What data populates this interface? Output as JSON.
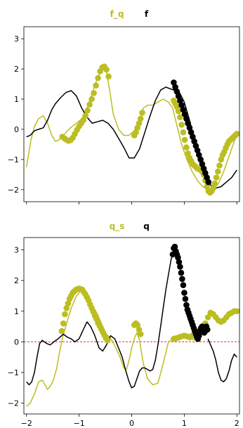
{
  "colors": {
    "olive": "#bcbd22",
    "black": "#000000",
    "zero_line": "#e8362a",
    "axes": "#000000",
    "background": "#ffffff"
  },
  "chart_data": [
    {
      "type": "line",
      "title_parts": [
        {
          "text": "f_q",
          "color": "#bcbd22"
        },
        {
          "text": "f",
          "color": "#000000"
        }
      ],
      "xlim": [
        -2.05,
        2.05
      ],
      "ylim": [
        -2.4,
        3.4
      ],
      "xticks": [
        -2,
        -1,
        0,
        1,
        2
      ],
      "xticklabels": [],
      "yticks": [
        -2,
        -1,
        0,
        1,
        2,
        3
      ],
      "yticklabels": [
        "−2",
        "−1",
        "0",
        "1",
        "2",
        "3"
      ],
      "grid": false,
      "zero_line": false,
      "series": [
        {
          "style": "line",
          "color": "#bcbd22",
          "x": [
            -2.0,
            -1.92,
            -1.85,
            -1.77,
            -1.68,
            -1.6,
            -1.52,
            -1.45,
            -1.38,
            -1.3,
            -1.22,
            -1.13,
            -1.05,
            -0.95,
            -0.85,
            -0.75,
            -0.65,
            -0.55,
            -0.48,
            -0.42,
            -0.35,
            -0.25,
            -0.15,
            -0.05,
            0.05,
            0.15,
            0.22,
            0.3,
            0.4,
            0.5,
            0.6,
            0.7,
            0.78,
            0.85,
            0.95,
            1.05,
            1.15,
            1.25,
            1.35,
            1.45,
            1.55,
            1.65,
            1.75,
            1.85,
            1.95,
            2.0
          ],
          "y": [
            -1.25,
            -0.4,
            0.1,
            0.35,
            0.45,
            0.2,
            -0.2,
            -0.4,
            -0.35,
            -0.2,
            -0.05,
            0.1,
            0.2,
            0.35,
            0.7,
            1.2,
            1.7,
            2.05,
            1.9,
            1.3,
            0.5,
            0.0,
            -0.2,
            -0.2,
            -0.05,
            0.3,
            0.7,
            0.8,
            0.8,
            0.9,
            1.0,
            0.9,
            0.7,
            0.2,
            -0.5,
            -1.0,
            -1.4,
            -1.7,
            -1.9,
            -2.0,
            -2.0,
            -1.8,
            -1.4,
            -0.9,
            -0.4,
            -0.2
          ]
        },
        {
          "style": "line",
          "color": "#000000",
          "x": [
            -2.0,
            -1.93,
            -1.85,
            -1.77,
            -1.68,
            -1.6,
            -1.52,
            -1.45,
            -1.35,
            -1.25,
            -1.15,
            -1.05,
            -0.95,
            -0.85,
            -0.75,
            -0.65,
            -0.55,
            -0.45,
            -0.35,
            -0.25,
            -0.15,
            -0.05,
            0.05,
            0.15,
            0.25,
            0.35,
            0.45,
            0.55,
            0.65,
            0.72,
            0.8,
            0.9,
            1.0,
            1.1,
            1.2,
            1.3,
            1.4,
            1.5,
            1.6,
            1.7,
            1.8,
            1.9,
            2.0
          ],
          "y": [
            -0.25,
            -0.2,
            -0.05,
            0.0,
            0.05,
            0.3,
            0.65,
            0.85,
            1.05,
            1.22,
            1.28,
            1.1,
            0.7,
            0.4,
            0.2,
            0.25,
            0.3,
            0.2,
            0.0,
            -0.3,
            -0.6,
            -0.95,
            -0.95,
            -0.65,
            -0.1,
            0.45,
            0.95,
            1.3,
            1.4,
            1.35,
            1.3,
            1.25,
            0.9,
            0.3,
            -0.4,
            -1.0,
            -1.55,
            -1.85,
            -1.95,
            -1.9,
            -1.75,
            -1.6,
            -1.35
          ]
        },
        {
          "style": "scatter",
          "color": "#bcbd22",
          "x": [
            -1.32,
            -1.28,
            -1.24,
            -1.2,
            -1.16,
            -1.12,
            -1.08,
            -1.04,
            -1.0,
            -0.96,
            -0.92,
            -0.88,
            -0.84,
            -0.8,
            -0.76,
            -0.72,
            -0.68,
            -0.64,
            -0.6,
            -0.56,
            -0.52,
            -0.48,
            -0.44,
            0.05,
            0.08,
            0.11,
            0.14,
            0.17,
            0.2,
            0.8,
            0.83,
            0.86,
            0.89,
            0.92,
            0.95,
            0.98,
            1.01,
            1.04,
            1.07,
            1.1,
            1.13,
            1.16,
            1.19,
            1.22,
            1.25,
            1.28,
            1.31,
            1.34,
            1.37,
            1.4,
            1.43,
            1.46,
            1.49,
            1.52,
            1.55,
            1.58,
            1.61,
            1.64,
            1.67,
            1.7,
            1.73,
            1.76,
            1.79,
            1.82,
            1.85,
            1.88,
            1.91,
            1.94,
            1.97,
            2.0
          ],
          "y": [
            -0.25,
            -0.3,
            -0.35,
            -0.38,
            -0.36,
            -0.28,
            -0.15,
            -0.02,
            0.1,
            0.2,
            0.3,
            0.45,
            0.62,
            0.82,
            1.0,
            1.2,
            1.45,
            1.7,
            1.92,
            2.05,
            2.08,
            1.98,
            1.75,
            -0.2,
            -0.1,
            0.05,
            0.2,
            0.35,
            0.55,
            0.95,
            0.85,
            0.75,
            0.6,
            0.4,
            0.15,
            -0.1,
            -0.35,
            -0.6,
            -0.8,
            -0.95,
            -1.05,
            -1.15,
            -1.2,
            -1.25,
            -1.3,
            -1.32,
            -1.35,
            -1.4,
            -1.5,
            -1.7,
            -1.9,
            -2.05,
            -2.1,
            -2.05,
            -1.95,
            -1.8,
            -1.6,
            -1.4,
            -1.2,
            -1.0,
            -0.85,
            -0.75,
            -0.62,
            -0.5,
            -0.4,
            -0.35,
            -0.3,
            -0.25,
            -0.2,
            -0.15
          ]
        },
        {
          "style": "scatter",
          "color": "#000000",
          "x": [
            0.8,
            0.83,
            0.86,
            0.89,
            0.92,
            0.95,
            0.98,
            1.01,
            1.04,
            1.07,
            1.1,
            1.13,
            1.16,
            1.19,
            1.22,
            1.25,
            1.28,
            1.31,
            1.34,
            1.37,
            1.4,
            1.43,
            1.46
          ],
          "y": [
            1.55,
            1.4,
            1.25,
            1.1,
            0.95,
            0.8,
            0.65,
            0.5,
            0.35,
            0.2,
            0.05,
            -0.1,
            -0.25,
            -0.4,
            -0.55,
            -0.7,
            -0.85,
            -1.0,
            -1.15,
            -1.3,
            -1.45,
            -1.6,
            -1.75
          ]
        }
      ]
    },
    {
      "type": "line",
      "title_parts": [
        {
          "text": "q_s",
          "color": "#bcbd22"
        },
        {
          "text": "q",
          "color": "#000000"
        }
      ],
      "xlim": [
        -2.05,
        2.05
      ],
      "ylim": [
        -2.35,
        3.4
      ],
      "xticks": [
        -2,
        -1,
        0,
        1,
        2
      ],
      "xticklabels": [
        "−2",
        "−1",
        "0",
        "1",
        "2"
      ],
      "yticks": [
        -2,
        -1,
        0,
        1,
        2,
        3
      ],
      "yticklabels": [
        "−2",
        "−1",
        "0",
        "1",
        "2",
        "3"
      ],
      "grid": false,
      "zero_line": true,
      "series": [
        {
          "style": "line",
          "color": "#bcbd22",
          "x": [
            -2.0,
            -1.93,
            -1.85,
            -1.77,
            -1.7,
            -1.65,
            -1.6,
            -1.55,
            -1.5,
            -1.43,
            -1.38,
            -1.32,
            -1.28,
            -1.22,
            -1.15,
            -1.05,
            -0.95,
            -0.85,
            -0.75,
            -0.65,
            -0.55,
            -0.48,
            -0.42,
            -0.36,
            -0.3,
            -0.22,
            -0.15,
            -0.1,
            -0.05,
            0.0,
            0.05,
            0.1,
            0.15,
            0.22,
            0.3,
            0.4,
            0.5,
            0.6,
            0.7,
            0.8,
            0.9,
            1.0,
            1.1,
            1.2,
            1.3
          ],
          "y": [
            -2.1,
            -2.0,
            -1.7,
            -1.3,
            -1.25,
            -1.4,
            -1.55,
            -1.45,
            -1.3,
            -0.9,
            -0.4,
            0.1,
            0.35,
            0.7,
            1.1,
            1.5,
            1.7,
            1.55,
            1.2,
            0.9,
            0.5,
            0.25,
            0.15,
            0.0,
            -0.2,
            -0.5,
            -0.85,
            -0.9,
            -0.6,
            -0.2,
            0.1,
            0.3,
            0.05,
            -0.7,
            -1.2,
            -1.4,
            -1.35,
            -0.7,
            0.0,
            0.1,
            0.12,
            0.15,
            0.12,
            0.05,
            0.0
          ]
        },
        {
          "style": "line",
          "color": "#000000",
          "x": [
            -2.0,
            -1.95,
            -1.9,
            -1.85,
            -1.8,
            -1.75,
            -1.7,
            -1.62,
            -1.55,
            -1.48,
            -1.4,
            -1.3,
            -1.22,
            -1.15,
            -1.08,
            -1.0,
            -0.92,
            -0.85,
            -0.78,
            -0.7,
            -0.62,
            -0.55,
            -0.48,
            -0.4,
            -0.32,
            -0.25,
            -0.18,
            -0.12,
            -0.05,
            0.0,
            0.05,
            0.1,
            0.15,
            0.2,
            0.25,
            0.3,
            0.35,
            0.4,
            0.45,
            0.5,
            0.55,
            0.6,
            0.65,
            0.7,
            0.75,
            0.8
          ],
          "y": [
            -1.3,
            -1.4,
            -1.3,
            -1.0,
            -0.5,
            -0.05,
            0.05,
            -0.05,
            -0.1,
            0.0,
            0.1,
            0.25,
            0.15,
            0.1,
            0.0,
            0.1,
            0.4,
            0.65,
            0.5,
            0.2,
            -0.2,
            -0.3,
            -0.1,
            0.2,
            0.1,
            -0.2,
            -0.5,
            -0.9,
            -1.3,
            -1.5,
            -1.45,
            -1.2,
            -0.95,
            -0.85,
            -0.85,
            -0.9,
            -0.95,
            -0.9,
            -0.6,
            -0.1,
            0.5,
            1.1,
            1.7,
            2.2,
            2.7,
            2.9
          ]
        },
        {
          "style": "line",
          "color": "#000000",
          "x": [
            1.45,
            1.5,
            1.55,
            1.6,
            1.65,
            1.7,
            1.75,
            1.8,
            1.85,
            1.9,
            1.95,
            2.0
          ],
          "y": [
            0.1,
            -0.1,
            -0.3,
            -0.6,
            -1.0,
            -1.25,
            -1.3,
            -1.2,
            -0.95,
            -0.6,
            -0.4,
            -0.5
          ]
        },
        {
          "style": "scatter",
          "color": "#bcbd22",
          "x": [
            -1.33,
            -1.3,
            -1.27,
            -1.24,
            -1.21,
            -1.18,
            -1.15,
            -1.12,
            -1.09,
            -1.06,
            -1.03,
            -1.0,
            -0.97,
            -0.94,
            -0.91,
            -0.88,
            -0.85,
            -0.82,
            -0.79,
            -0.76,
            -0.73,
            -0.7,
            -0.67,
            -0.64,
            -0.61,
            -0.58,
            -0.55,
            -0.52,
            -0.49,
            -0.46,
            0.05,
            0.08,
            0.11,
            0.14,
            0.17,
            0.8,
            0.85,
            0.9,
            0.95,
            1.0,
            1.05,
            1.1,
            1.15,
            1.2,
            1.25,
            1.3,
            1.35,
            1.4,
            1.45,
            1.5,
            1.55,
            1.6,
            1.65,
            1.7,
            1.75,
            1.8,
            1.85,
            1.9,
            1.95,
            2.0
          ],
          "y": [
            0.35,
            0.6,
            0.9,
            1.1,
            1.25,
            1.4,
            1.5,
            1.6,
            1.65,
            1.7,
            1.72,
            1.74,
            1.72,
            1.7,
            1.62,
            1.55,
            1.45,
            1.35,
            1.22,
            1.1,
            0.98,
            0.85,
            0.75,
            0.62,
            0.52,
            0.42,
            0.32,
            0.22,
            0.12,
            0.05,
            0.55,
            0.6,
            0.55,
            0.4,
            0.25,
            0.1,
            0.12,
            0.15,
            0.18,
            0.2,
            0.18,
            0.15,
            0.2,
            0.3,
            0.35,
            0.4,
            0.5,
            0.6,
            0.8,
            0.95,
            0.9,
            0.8,
            0.7,
            0.65,
            0.7,
            0.8,
            0.9,
            0.95,
            1.0,
            1.0
          ]
        },
        {
          "style": "scatter",
          "color": "#000000",
          "x": [
            0.78,
            0.8,
            0.82,
            0.84,
            0.86,
            0.88,
            0.9,
            0.92,
            0.94,
            0.96,
            0.98,
            1.0,
            1.02,
            1.04,
            1.06,
            1.08,
            1.1,
            1.12,
            1.14,
            1.16,
            1.18,
            1.2,
            1.22,
            1.24,
            1.26,
            1.28,
            1.3,
            1.32,
            1.34,
            1.36,
            1.38,
            1.4,
            1.42,
            1.44
          ],
          "y": [
            2.85,
            3.05,
            3.1,
            2.95,
            2.85,
            2.75,
            2.6,
            2.45,
            2.25,
            2.05,
            1.85,
            1.6,
            1.4,
            1.2,
            1.05,
            0.95,
            0.85,
            0.75,
            0.65,
            0.55,
            0.45,
            0.35,
            0.25,
            0.15,
            0.1,
            0.2,
            0.35,
            0.45,
            0.5,
            0.4,
            0.3,
            0.35,
            0.5,
            0.4
          ]
        }
      ]
    }
  ]
}
